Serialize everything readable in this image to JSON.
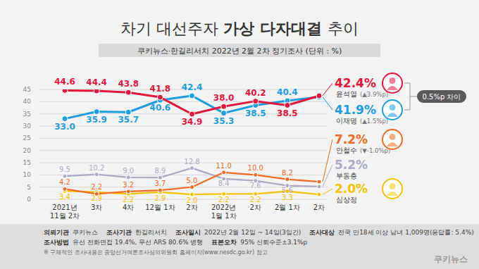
{
  "chart_data": {
    "type": "line",
    "title": "차기 대선주자 가상 다자대결 추이",
    "subtitle": "쿠키뉴스·한길리서치 2022년 2월 2차 정기조사 (단위 : %)",
    "categories": [
      "2021년\n11월 2차",
      "3차",
      "4차",
      "12월 1차",
      "2차",
      "2022년\n1월 1차",
      "2차",
      "2월 1차",
      "2차"
    ],
    "ylim": [
      0,
      45
    ],
    "yticks": [
      0,
      5,
      10,
      15,
      20,
      25,
      30,
      35,
      40,
      45
    ],
    "grid": true,
    "data_labels": true,
    "marker": "circle",
    "series": [
      {
        "name": "윤석열",
        "color": "#e3173e",
        "change": "(▲3.9%p)",
        "values": [
          44.6,
          44.4,
          43.8,
          41.8,
          34.9,
          38.0,
          40.2,
          38.5,
          42.4
        ],
        "value_labels": [
          "44.6",
          "44.4",
          "43.8",
          "41.8",
          "34.9",
          "38.0",
          "40.2",
          "38.5",
          "42.4%"
        ]
      },
      {
        "name": "이재명",
        "color": "#1f9de2",
        "change": "(▲1.5%p)",
        "values": [
          33.0,
          35.9,
          35.7,
          40.6,
          42.4,
          35.3,
          38.5,
          40.4,
          41.9
        ],
        "value_labels": [
          "33.0",
          "35.9",
          "35.7",
          "40.6",
          "42.4",
          "35.3",
          "38.5",
          "40.4",
          "41.9%"
        ]
      },
      {
        "name": "안철수",
        "color": "#f26a21",
        "change": "(▼-1.0%p)",
        "values": [
          4.2,
          2.2,
          3.2,
          3.7,
          5.0,
          11.0,
          10.0,
          8.2,
          7.2
        ],
        "value_labels": [
          "4.2",
          "2.2",
          "3.2",
          "3.7",
          "5.0",
          "11.0",
          "10.0",
          "8.2",
          "7.2%"
        ]
      },
      {
        "name": "부동층",
        "color": "#aeaac4",
        "values": [
          9.5,
          10.2,
          9.0,
          8.9,
          12.8,
          8.4,
          7.6,
          5.6,
          5.2
        ],
        "value_labels": [
          "9.5",
          "10.2",
          "9.0",
          "8.9",
          "12.8",
          "8.4",
          "7.6",
          "5.6",
          "5.2%"
        ]
      },
      {
        "name": "심상정",
        "color": "#f5c400",
        "values": [
          3.4,
          2.9,
          2.2,
          2.9,
          2.0,
          2.2,
          2.2,
          3.3,
          2.0
        ],
        "value_labels": [
          "3.4",
          "2.9",
          "2.2",
          "2.9",
          "2.0",
          "2.2",
          "2.2",
          "3.3",
          "2.0%"
        ]
      }
    ],
    "annotations": [
      "0.5%p 차이"
    ],
    "footer": [
      [
        {
          "label": "의뢰기관",
          "text": "쿠키뉴스"
        },
        {
          "label": "조사기관",
          "text": "한길리서치"
        },
        {
          "label": "조사일시",
          "text": "2022년 2월 12일 ~ 14일(3일간)"
        },
        {
          "label": "조사대상",
          "text": "전국 만18세 이상 남녀 1,009명(응답률: 5.4%)"
        }
      ],
      [
        {
          "label": "조사방법",
          "text": "유선 전화면접 19.4%, 무선 ARS 80.6% 병행"
        },
        {
          "label": "표본오차",
          "text": "95% 신뢰수준±3.1%p"
        }
      ]
    ],
    "note": "※ 구체적인 조사내용은 중앙선거여론조사심의위원회 홈페이지(www.nesdc.go.kr) 참고",
    "logo": "쿠키뉴스"
  }
}
